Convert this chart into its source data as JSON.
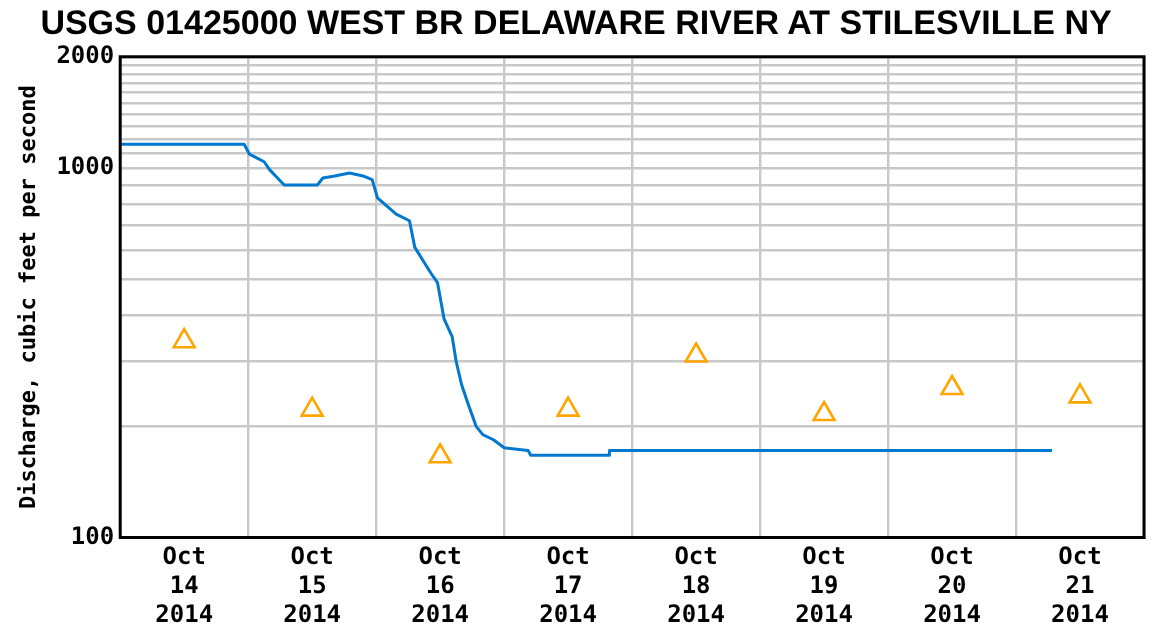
{
  "chart_data": {
    "type": "line",
    "title": "USGS 01425000 WEST BR DELAWARE RIVER AT STILESVILLE NY",
    "ylabel": "Discharge, cubic feet per second",
    "xlim": [
      "2014-10-14T00:00",
      "2014-10-22T00:00"
    ],
    "xticks": [
      {
        "value": "2014-10-14T00:00",
        "label": null
      },
      {
        "value": "2014-10-14T12:00",
        "label": "Oct\n14\n2014"
      },
      {
        "value": "2014-10-15T00:00",
        "label": null
      },
      {
        "value": "2014-10-15T12:00",
        "label": "Oct\n15\n2014"
      },
      {
        "value": "2014-10-16T00:00",
        "label": null
      },
      {
        "value": "2014-10-16T12:00",
        "label": "Oct\n16\n2014"
      },
      {
        "value": "2014-10-17T00:00",
        "label": null
      },
      {
        "value": "2014-10-17T12:00",
        "label": "Oct\n17\n2014"
      },
      {
        "value": "2014-10-18T00:00",
        "label": null
      },
      {
        "value": "2014-10-18T12:00",
        "label": "Oct\n18\n2014"
      },
      {
        "value": "2014-10-19T00:00",
        "label": null
      },
      {
        "value": "2014-10-19T12:00",
        "label": "Oct\n19\n2014"
      },
      {
        "value": "2014-10-20T00:00",
        "label": null
      },
      {
        "value": "2014-10-20T12:00",
        "label": "Oct\n20\n2014"
      },
      {
        "value": "2014-10-21T00:00",
        "label": null
      },
      {
        "value": "2014-10-21T12:00",
        "label": "Oct\n21\n2014"
      },
      {
        "value": "2014-10-22T00:00",
        "label": null
      }
    ],
    "ylim": [
      100,
      2000
    ],
    "yticks": [
      100,
      {
        "value": 200,
        "label": null
      },
      {
        "value": 300,
        "label": null
      },
      {
        "value": 400,
        "label": null
      },
      {
        "value": 500,
        "label": null
      },
      {
        "value": 600,
        "label": null
      },
      {
        "value": 700,
        "label": null
      },
      {
        "value": 800,
        "label": null
      },
      {
        "value": 900,
        "label": null
      },
      1000,
      {
        "value": 1100,
        "label": null
      },
      {
        "value": 1200,
        "label": null
      },
      {
        "value": 1300,
        "label": null
      },
      {
        "value": 1400,
        "label": null
      },
      {
        "value": 1500,
        "label": null
      },
      {
        "value": 1600,
        "label": null
      },
      {
        "value": 1700,
        "label": null
      },
      {
        "value": 1800,
        "label": null
      },
      {
        "value": 1900,
        "label": null
      },
      2000
    ],
    "log": "y",
    "grid": true,
    "legend": false,
    "series": [
      {
        "type": "line",
        "color": "#0078d0",
        "marker": "none",
        "line_style": "solid",
        "x": [
          "2014-10-14T00:00",
          "2014-10-14T23:15",
          "2014-10-15T00:15",
          "2014-10-15T03:00",
          "2014-10-15T04:00",
          "2014-10-15T05:30",
          "2014-10-15T06:45",
          "2014-10-15T13:00",
          "2014-10-15T14:00",
          "2014-10-15T16:00",
          "2014-10-15T19:00",
          "2014-10-15T21:45",
          "2014-10-15T23:15",
          "2014-10-16T00:15",
          "2014-10-16T03:45",
          "2014-10-16T06:15",
          "2014-10-16T07:15",
          "2014-10-16T10:15",
          "2014-10-16T11:30",
          "2014-10-16T12:45",
          "2014-10-16T14:15",
          "2014-10-16T15:00",
          "2014-10-16T16:00",
          "2014-10-16T17:15",
          "2014-10-16T18:45",
          "2014-10-16T20:00",
          "2014-10-16T22:00",
          "2014-10-17T00:00",
          "2014-10-17T04:30",
          "2014-10-17T05:00",
          "2014-10-17T19:30",
          "2014-10-17T19:45",
          "2014-10-21T06:45"
        ],
        "values": [
          1160,
          1160,
          1090,
          1040,
          990,
          940,
          900,
          900,
          940,
          950,
          970,
          950,
          930,
          830,
          750,
          720,
          610,
          520,
          490,
          390,
          350,
          300,
          260,
          230,
          200,
          190,
          184,
          175,
          172,
          167,
          167,
          172,
          172
        ]
      },
      {
        "type": "scatter",
        "color": "#ffa500",
        "marker": "triangle",
        "x": [
          "2014-10-14T12:00",
          "2014-10-15T12:00",
          "2014-10-16T12:00",
          "2014-10-17T12:00",
          "2014-10-18T12:00",
          "2014-10-19T12:00",
          "2014-10-20T12:00",
          "2014-10-21T12:00"
        ],
        "values": [
          340,
          222,
          166,
          222,
          311,
          216,
          254,
          241
        ]
      }
    ]
  }
}
